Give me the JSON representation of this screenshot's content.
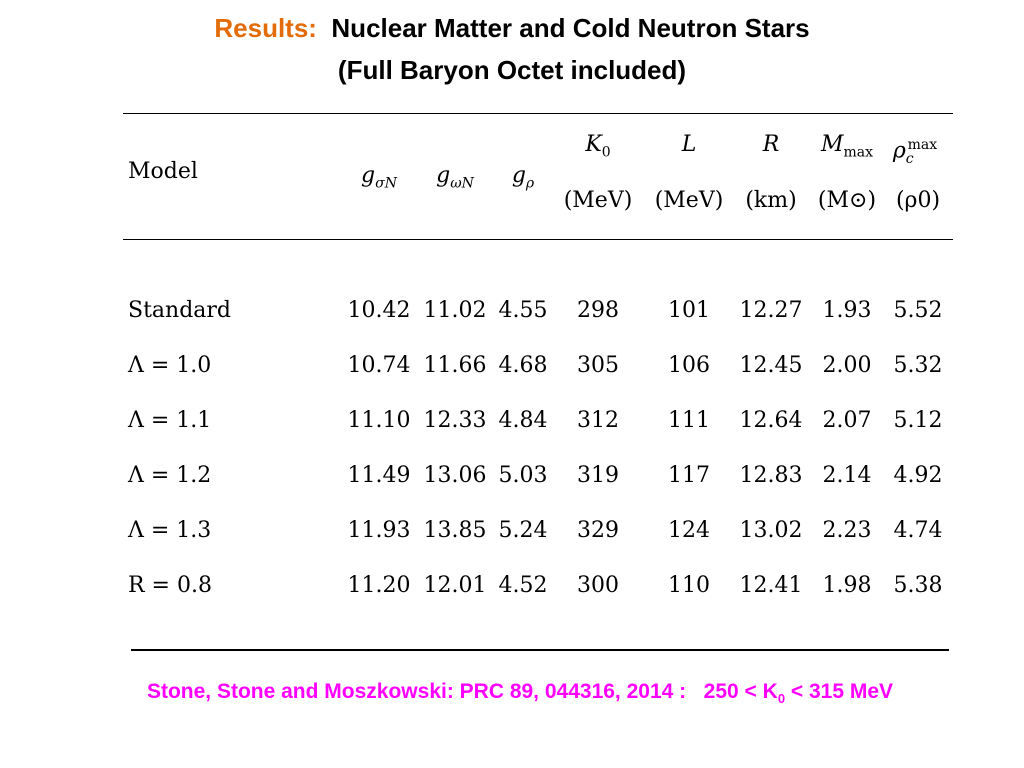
{
  "title": {
    "prefix": "Results:",
    "main": "Nuclear Matter and Cold Neutron Stars",
    "sub": "(Full Baryon Octet included)"
  },
  "table": {
    "header": {
      "model": "Model",
      "g_sigma_N": "gσN",
      "g_omega_N": "gωN",
      "g_rho": "gρ",
      "K0": "K0",
      "L": "L",
      "R": "R",
      "Mmax": "Mmax",
      "rho_c_max": "ρcmax",
      "units": {
        "K0": "(MeV)",
        "L": "(MeV)",
        "R": "(km)",
        "Mmax": "(M⊙)",
        "rho": "(ρ0)"
      }
    },
    "rows": [
      {
        "model": "Standard",
        "g_sigma_N": "10.42",
        "g_omega_N": "11.02",
        "g_rho": "4.55",
        "K0": "298",
        "L": "101",
        "R": "12.27",
        "Mmax": "1.93",
        "rho_c_max": "5.52"
      },
      {
        "model": "Λ = 1.0",
        "g_sigma_N": "10.74",
        "g_omega_N": "11.66",
        "g_rho": "4.68",
        "K0": "305",
        "L": "106",
        "R": "12.45",
        "Mmax": "2.00",
        "rho_c_max": "5.32"
      },
      {
        "model": "Λ = 1.1",
        "g_sigma_N": "11.10",
        "g_omega_N": "12.33",
        "g_rho": "4.84",
        "K0": "312",
        "L": "111",
        "R": "12.64",
        "Mmax": "2.07",
        "rho_c_max": "5.12"
      },
      {
        "model": "Λ = 1.2",
        "g_sigma_N": "11.49",
        "g_omega_N": "13.06",
        "g_rho": "5.03",
        "K0": "319",
        "L": "117",
        "R": "12.83",
        "Mmax": "2.14",
        "rho_c_max": "4.92"
      },
      {
        "model": "Λ = 1.3",
        "g_sigma_N": "11.93",
        "g_omega_N": "13.85",
        "g_rho": "5.24",
        "K0": "329",
        "L": "124",
        "R": "13.02",
        "Mmax": "2.23",
        "rho_c_max": "4.74"
      },
      {
        "model": "R = 0.8",
        "g_sigma_N": "11.20",
        "g_omega_N": "12.01",
        "g_rho": "4.52",
        "K0": "300",
        "L": "110",
        "R": "12.41",
        "Mmax": "1.98",
        "rho_c_max": "5.38"
      }
    ]
  },
  "citation": {
    "text": "Stone, Stone and Moszkowski: PRC 89, 044316, 2014 :",
    "range_prefix": "250 < K",
    "range_sub": "0",
    "range_suffix": " < 315 MeV"
  },
  "colors": {
    "accent": "#e36c09",
    "citation": "#ff00ff"
  }
}
